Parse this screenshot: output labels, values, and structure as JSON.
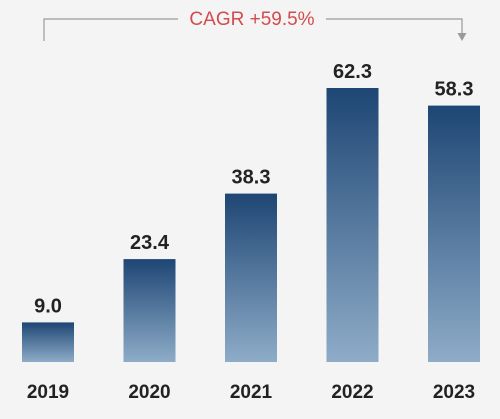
{
  "chart_data": {
    "type": "bar",
    "categories": [
      "2019",
      "2020",
      "2021",
      "2022",
      "2023"
    ],
    "values": [
      9.0,
      23.4,
      38.3,
      62.3,
      58.3
    ],
    "value_labels": [
      "9.0",
      "23.4",
      "38.3",
      "62.3",
      "58.3"
    ],
    "title": "",
    "xlabel": "",
    "ylabel": "",
    "ylim": [
      0,
      62.3
    ],
    "grid": false,
    "legend": "none",
    "annotation": {
      "text": "CAGR +59.5%",
      "from": "2019",
      "to": "2023",
      "color": "#d24b4f",
      "arrow_color": "#9a9a9a"
    },
    "bar_colors": {
      "top": "#1e4674",
      "bottom": "#8eacc8"
    }
  }
}
